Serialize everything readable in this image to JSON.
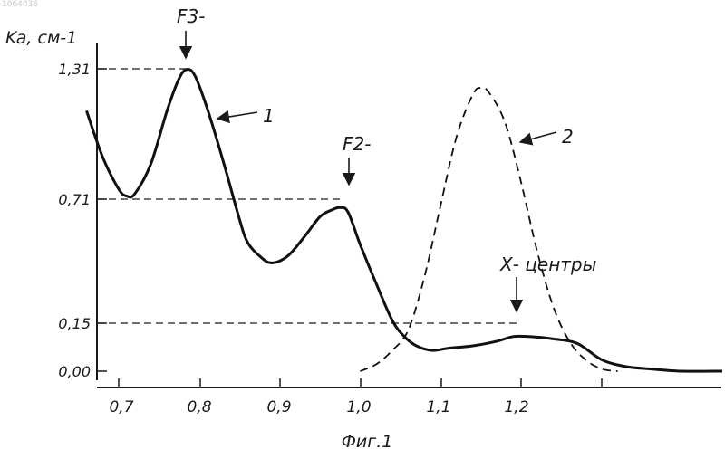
{
  "header_code": "1064036",
  "chart_data": {
    "type": "line",
    "ylabel": "Ka, см-1",
    "xlabel": "Фиг.1",
    "x_ticks": [
      0.7,
      0.8,
      0.9,
      1.0,
      1.1,
      1.2
    ],
    "x_tick_labels": [
      "0,7",
      "0,8",
      "0,9",
      "1,0",
      "1,1",
      "1,2"
    ],
    "y_ticks": [
      0.0,
      0.15,
      0.71,
      1.31
    ],
    "y_tick_labels": [
      "0,00",
      "0,15",
      "0,71",
      "1,31"
    ],
    "xlim": [
      0.66,
      1.46
    ],
    "ylim": [
      -0.06,
      1.55
    ],
    "grid": false,
    "series": [
      {
        "name": "1",
        "style": "solid",
        "x": [
          0.66,
          0.68,
          0.7,
          0.71,
          0.72,
          0.74,
          0.76,
          0.775,
          0.785,
          0.795,
          0.81,
          0.83,
          0.85,
          0.86,
          0.875,
          0.89,
          0.91,
          0.93,
          0.95,
          0.965,
          0.975,
          0.985,
          1.0,
          1.02,
          1.04,
          1.055,
          1.07,
          1.09,
          1.11,
          1.14,
          1.17,
          1.19,
          1.21,
          1.24,
          1.27,
          1.3,
          1.33,
          1.36,
          1.4,
          1.45
        ],
        "y": [
          1.13,
          0.93,
          0.79,
          0.76,
          0.77,
          0.9,
          1.13,
          1.27,
          1.31,
          1.28,
          1.14,
          0.91,
          0.66,
          0.56,
          0.5,
          0.47,
          0.5,
          0.58,
          0.67,
          0.7,
          0.71,
          0.69,
          0.55,
          0.38,
          0.22,
          0.15,
          0.11,
          0.09,
          0.1,
          0.11,
          0.13,
          0.15,
          0.15,
          0.14,
          0.12,
          0.05,
          0.02,
          0.01,
          0.0,
          0.0
        ]
      },
      {
        "name": "2",
        "style": "dashed",
        "x": [
          1.0,
          1.02,
          1.04,
          1.06,
          1.08,
          1.1,
          1.12,
          1.14,
          1.15,
          1.16,
          1.18,
          1.2,
          1.22,
          1.24,
          1.26,
          1.28,
          1.3,
          1.32
        ],
        "y": [
          0.0,
          0.03,
          0.09,
          0.18,
          0.41,
          0.72,
          1.02,
          1.2,
          1.23,
          1.21,
          1.08,
          0.82,
          0.52,
          0.28,
          0.13,
          0.05,
          0.01,
          0.0
        ]
      }
    ],
    "annotations": [
      {
        "text": "F3-",
        "target_x": 0.785,
        "target_y": 1.31
      },
      {
        "text": "F2-",
        "target_x": 0.98,
        "target_y": 0.71
      },
      {
        "text": "Х- центры",
        "target_x": 1.19,
        "target_y": 0.15
      },
      {
        "text": "1",
        "target_x": 0.83,
        "target_y": 1.12
      },
      {
        "text": "2",
        "target_x": 1.2,
        "target_y": 1.02
      }
    ]
  }
}
